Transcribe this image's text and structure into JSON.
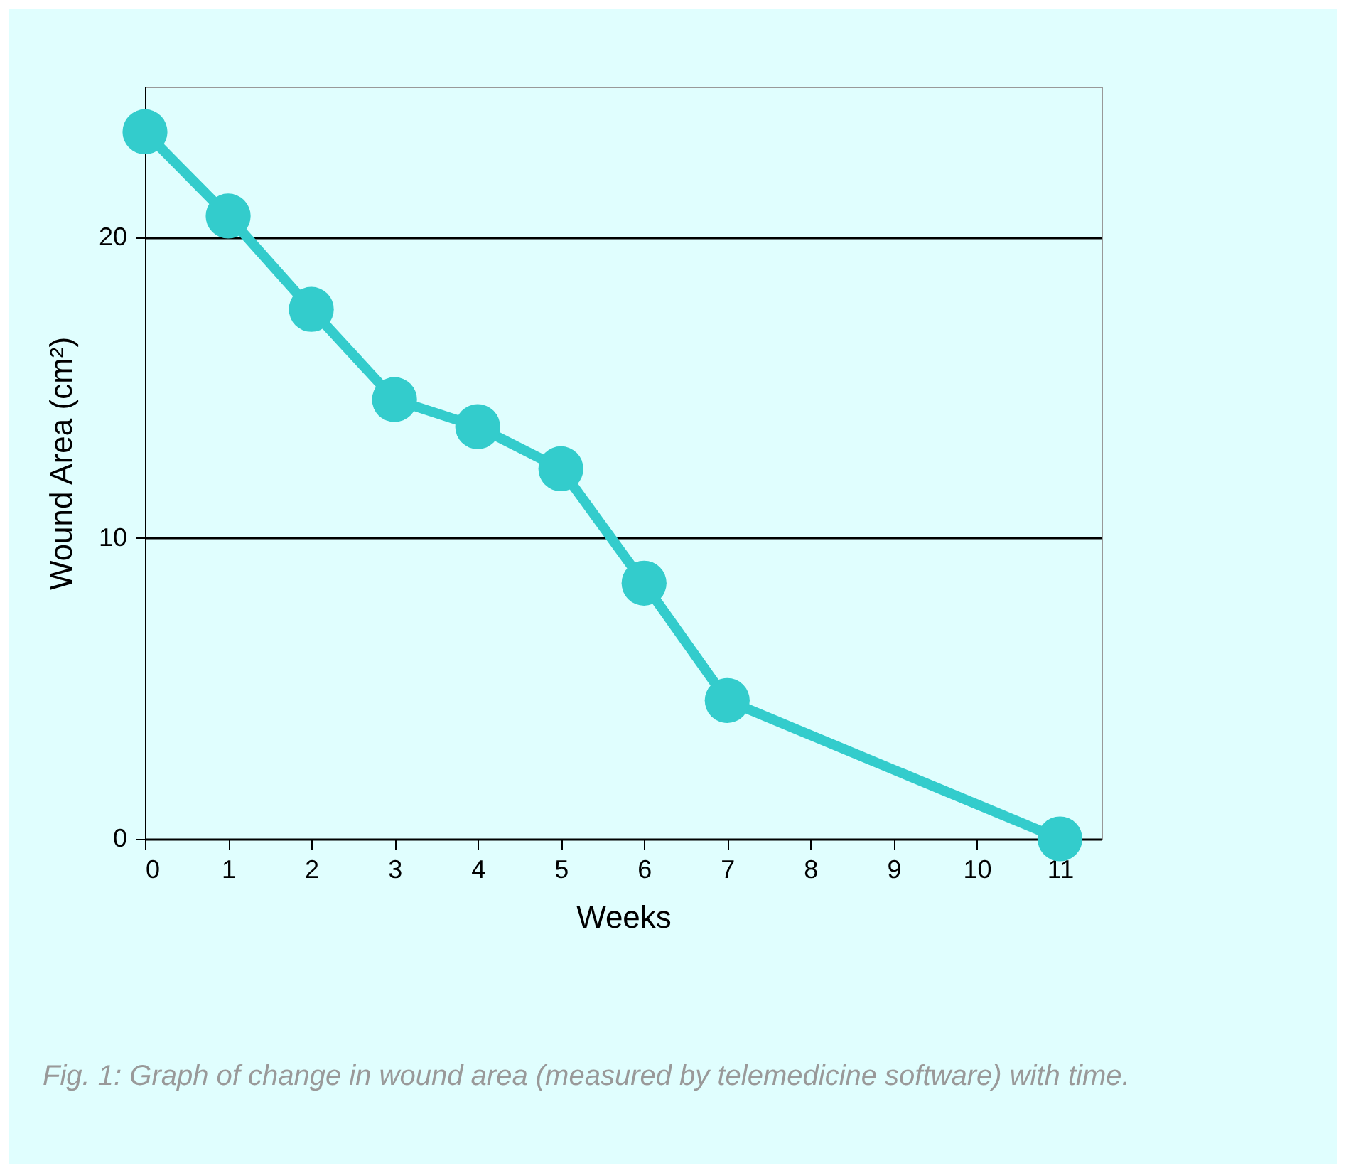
{
  "chart_data": {
    "type": "line",
    "xlabel": "Weeks",
    "ylabel": "Wound Area (cm²)",
    "x": [
      0,
      1,
      2,
      3,
      4,
      5,
      6,
      7,
      11
    ],
    "series": [
      {
        "color": "#33cccc",
        "values": [
          23.5,
          20.7,
          17.6,
          14.6,
          13.7,
          12.3,
          8.5,
          4.6,
          0
        ]
      }
    ],
    "xlim": [
      0,
      11.5
    ],
    "xticks": [
      0,
      1,
      2,
      3,
      4,
      5,
      6,
      7,
      8,
      9,
      10,
      11
    ],
    "ylim": [
      0,
      25
    ],
    "yticks": [
      0,
      10,
      20
    ],
    "grid": "y",
    "marker": "circle",
    "line_style": "solid",
    "legend": false,
    "annotations": [
      "Fig. 1: Graph of change in wound area (measured by telemedicine software) with time."
    ]
  }
}
